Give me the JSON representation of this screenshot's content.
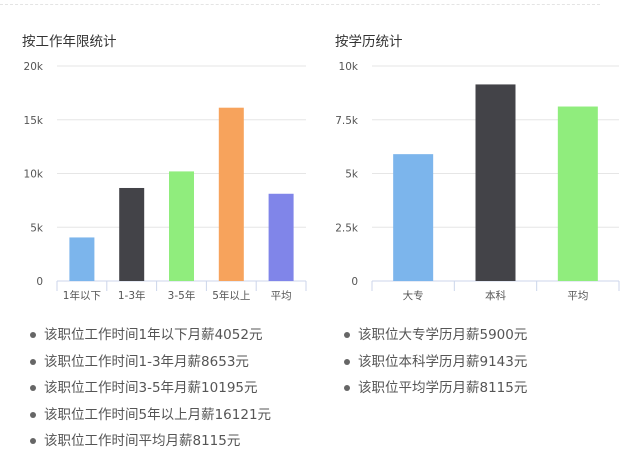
{
  "left_chart": {
    "title": "按工作年限统计"
  },
  "right_chart": {
    "title": "按学历统计"
  },
  "chart_data": [
    {
      "type": "bar",
      "title": "按工作年限统计",
      "categories": [
        "1年以下",
        "1-3年",
        "3-5年",
        "5年以上",
        "平均"
      ],
      "values": [
        4052,
        8653,
        10195,
        16121,
        8115
      ],
      "colors": [
        "#7cb5ec",
        "#434348",
        "#90ed7d",
        "#f7a35c",
        "#8085e9"
      ],
      "ylim": [
        0,
        20000
      ],
      "yticks": [
        0,
        5000,
        10000,
        15000,
        20000
      ],
      "ytick_labels": [
        "0",
        "5k",
        "10k",
        "15k",
        "20k"
      ],
      "grid": true
    },
    {
      "type": "bar",
      "title": "按学历统计",
      "categories": [
        "大专",
        "本科",
        "平均"
      ],
      "values": [
        5900,
        9143,
        8115
      ],
      "colors": [
        "#7cb5ec",
        "#434348",
        "#90ed7d"
      ],
      "ylim": [
        0,
        10000
      ],
      "yticks": [
        0,
        2500,
        5000,
        7500,
        10000
      ],
      "ytick_labels": [
        "0",
        "2.5k",
        "5k",
        "7.5k",
        "10k"
      ],
      "grid": true
    }
  ],
  "left_list": [
    "该职位工作时间1年以下月薪4052元",
    "该职位工作时间1-3年月薪8653元",
    "该职位工作时间3-5年月薪10195元",
    "该职位工作时间5年以上月薪16121元",
    "该职位工作时间平均月薪8115元"
  ],
  "right_list": [
    "该职位大专学历月薪5900元",
    "该职位本科学历月薪9143元",
    "该职位平均学历月薪8115元"
  ]
}
